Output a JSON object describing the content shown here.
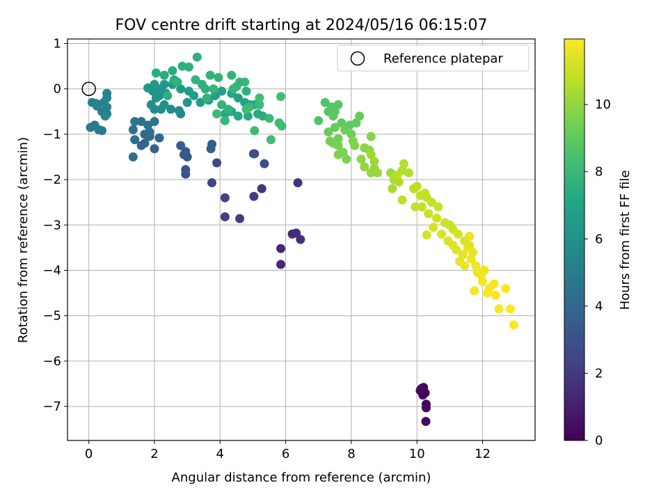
{
  "chart_data": {
    "type": "scatter",
    "title": "FOV centre drift starting at 2024/05/16 06:15:07",
    "xlabel": "Angular distance from reference (arcmin)",
    "ylabel": "Rotation from reference (arcmin)",
    "xlim": [
      -0.65,
      13.6
    ],
    "ylim": [
      -7.75,
      1.1
    ],
    "xticks": [
      0,
      2,
      4,
      6,
      8,
      10,
      12
    ],
    "yticks": [
      1,
      0,
      -1,
      -2,
      -3,
      -4,
      -5,
      -6,
      -7
    ],
    "grid": true,
    "legend": {
      "position": "top-right",
      "entries": [
        "Reference platepar"
      ]
    },
    "reference_point": {
      "x": 0.0,
      "y": 0.0,
      "label": "Reference platepar"
    },
    "colorbar": {
      "label": "Hours from first FF file",
      "cmap": "viridis",
      "range": [
        0,
        11.95
      ],
      "ticks": [
        0,
        2,
        4,
        6,
        8,
        10
      ]
    },
    "points": [
      [
        10.1,
        -6.65,
        0.0
      ],
      [
        10.2,
        -6.7,
        0.05
      ],
      [
        10.15,
        -6.6,
        0.08
      ],
      [
        10.25,
        -6.7,
        0.1
      ],
      [
        10.2,
        -6.58,
        0.12
      ],
      [
        10.18,
        -6.75,
        0.15
      ],
      [
        10.28,
        -6.95,
        0.2
      ],
      [
        10.28,
        -7.03,
        0.25
      ],
      [
        10.27,
        -7.33,
        0.3
      ],
      [
        10.12,
        -6.62,
        0.35
      ],
      [
        5.85,
        -3.52,
        1.3
      ],
      [
        5.85,
        -3.87,
        1.35
      ],
      [
        6.2,
        -3.2,
        1.45
      ],
      [
        6.32,
        -3.18,
        1.5
      ],
      [
        6.45,
        -3.32,
        1.55
      ],
      [
        6.37,
        -2.07,
        1.7
      ],
      [
        5.27,
        -2.2,
        1.9
      ],
      [
        5.03,
        -2.37,
        2.0
      ],
      [
        4.6,
        -2.86,
        2.1
      ],
      [
        4.15,
        -2.82,
        2.2
      ],
      [
        4.15,
        -2.4,
        2.3
      ],
      [
        3.75,
        -2.07,
        2.4
      ],
      [
        3.9,
        -1.63,
        2.6
      ],
      [
        5.35,
        -1.65,
        2.7
      ],
      [
        5.05,
        -1.43,
        2.8
      ],
      [
        5.02,
        -1.43,
        2.9
      ],
      [
        2.95,
        -1.88,
        3.0
      ],
      [
        2.95,
        -1.78,
        3.1
      ],
      [
        3.0,
        -1.5,
        3.2
      ],
      [
        2.9,
        -1.45,
        3.3
      ],
      [
        2.95,
        -1.38,
        3.4
      ],
      [
        2.8,
        -1.25,
        3.5
      ],
      [
        3.75,
        -1.22,
        3.55
      ],
      [
        3.72,
        -1.32,
        3.6
      ],
      [
        2.0,
        -1.32,
        3.7
      ],
      [
        1.7,
        -1.2,
        3.8
      ],
      [
        1.6,
        -1.25,
        3.9
      ],
      [
        2.15,
        -1.08,
        4.0
      ],
      [
        1.85,
        -1.05,
        4.1
      ],
      [
        1.7,
        -1.0,
        4.15
      ],
      [
        1.85,
        -0.95,
        4.2
      ],
      [
        1.4,
        -1.12,
        4.3
      ],
      [
        1.35,
        -1.5,
        4.35
      ],
      [
        1.35,
        -0.9,
        4.4
      ],
      [
        1.6,
        -0.72,
        4.5
      ],
      [
        1.8,
        -0.8,
        4.55
      ],
      [
        1.4,
        -0.72,
        4.6
      ],
      [
        2.0,
        -0.72,
        4.65
      ],
      [
        0.05,
        -0.85,
        4.8
      ],
      [
        0.18,
        -0.8,
        4.85
      ],
      [
        0.4,
        -0.92,
        4.9
      ],
      [
        0.3,
        -0.9,
        4.95
      ],
      [
        0.55,
        -0.55,
        5.0
      ],
      [
        0.4,
        -0.5,
        5.05
      ],
      [
        0.55,
        -0.4,
        5.1
      ],
      [
        0.25,
        -0.38,
        5.15
      ],
      [
        0.1,
        -0.3,
        5.2
      ],
      [
        0.22,
        -0.32,
        5.25
      ],
      [
        0.45,
        -0.3,
        5.3
      ],
      [
        0.55,
        -0.2,
        5.35
      ],
      [
        0.55,
        -0.1,
        5.4
      ],
      [
        0.5,
        -0.6,
        5.45
      ],
      [
        2.8,
        -0.55,
        5.6
      ],
      [
        2.75,
        -0.48,
        5.7
      ],
      [
        2.5,
        -0.45,
        5.75
      ],
      [
        2.2,
        -0.45,
        5.8
      ],
      [
        2.0,
        -0.45,
        5.85
      ],
      [
        1.9,
        -0.35,
        5.9
      ],
      [
        2.3,
        -0.35,
        5.95
      ],
      [
        3.0,
        -0.3,
        6.0
      ],
      [
        2.05,
        -0.2,
        6.05
      ],
      [
        2.15,
        -0.15,
        6.1
      ],
      [
        2.35,
        -0.1,
        6.15
      ],
      [
        1.95,
        -0.05,
        6.2
      ],
      [
        2.2,
        0.0,
        6.25
      ],
      [
        1.8,
        0.02,
        6.3
      ],
      [
        2.0,
        0.1,
        6.35
      ],
      [
        2.3,
        0.1,
        6.4
      ],
      [
        2.55,
        0.1,
        6.45
      ],
      [
        2.8,
        0.0,
        6.5
      ],
      [
        3.05,
        -0.05,
        6.55
      ],
      [
        3.2,
        -0.15,
        6.6
      ],
      [
        3.4,
        -0.3,
        6.65
      ],
      [
        3.65,
        -0.25,
        6.7
      ],
      [
        3.85,
        -0.15,
        6.75
      ],
      [
        4.05,
        -0.05,
        6.8
      ],
      [
        4.35,
        -0.1,
        6.85
      ],
      [
        4.55,
        -0.2,
        6.9
      ],
      [
        4.75,
        -0.3,
        6.95
      ],
      [
        4.9,
        -0.35,
        7.0
      ],
      [
        5.05,
        -0.35,
        7.05
      ],
      [
        4.15,
        -0.55,
        7.1
      ],
      [
        4.35,
        -0.5,
        7.15
      ],
      [
        4.55,
        -0.6,
        7.2
      ],
      [
        4.85,
        -0.6,
        7.25
      ],
      [
        5.15,
        -0.55,
        7.3
      ],
      [
        5.3,
        -0.6,
        7.35
      ],
      [
        2.3,
        0.3,
        7.4
      ],
      [
        2.05,
        0.35,
        7.45
      ],
      [
        2.55,
        0.4,
        7.5
      ],
      [
        2.85,
        0.5,
        7.55
      ],
      [
        3.3,
        0.7,
        7.6
      ],
      [
        3.05,
        0.48,
        7.65
      ],
      [
        3.7,
        0.3,
        7.7
      ],
      [
        3.95,
        0.25,
        7.75
      ],
      [
        4.35,
        0.3,
        7.8
      ],
      [
        4.5,
        0.05,
        7.85
      ],
      [
        4.75,
        0.15,
        7.9
      ],
      [
        4.15,
        -0.7,
        7.95
      ],
      [
        3.9,
        -0.55,
        8.0
      ],
      [
        4.6,
        0.15,
        7.75
      ],
      [
        4.8,
        -0.05,
        7.6
      ],
      [
        3.45,
        0.1,
        7.55
      ],
      [
        3.55,
        0.0,
        7.55
      ],
      [
        2.6,
        0.2,
        7.5
      ],
      [
        2.4,
        -0.15,
        7.6
      ],
      [
        4.05,
        -0.35,
        7.8
      ],
      [
        4.25,
        -0.45,
        7.85
      ],
      [
        3.8,
        0.0,
        7.9
      ],
      [
        3.25,
        0.2,
        7.7
      ],
      [
        3.6,
        -0.2,
        7.75
      ],
      [
        2.7,
        0.15,
        7.65
      ],
      [
        4.4,
        0.0,
        7.95
      ],
      [
        4.9,
        -0.4,
        8.0
      ],
      [
        5.2,
        -0.35,
        8.05
      ],
      [
        5.5,
        -0.65,
        8.1
      ],
      [
        5.8,
        -0.75,
        8.15
      ],
      [
        5.88,
        -0.82,
        8.2
      ],
      [
        5.05,
        -0.92,
        8.2
      ],
      [
        5.55,
        -1.12,
        8.25
      ],
      [
        5.85,
        -0.17,
        8.25
      ],
      [
        5.2,
        -0.2,
        8.3
      ],
      [
        4.8,
        -0.45,
        8.2
      ],
      [
        7.2,
        -0.3,
        8.6
      ],
      [
        7.0,
        -0.7,
        8.65
      ],
      [
        7.4,
        -0.4,
        8.7
      ],
      [
        7.3,
        -0.5,
        8.75
      ],
      [
        7.6,
        -0.35,
        8.8
      ],
      [
        7.5,
        -0.5,
        8.85
      ],
      [
        7.45,
        -0.6,
        8.9
      ],
      [
        7.7,
        -0.75,
        8.95
      ],
      [
        7.95,
        -0.8,
        9.0
      ],
      [
        8.15,
        -0.75,
        9.05
      ],
      [
        8.25,
        -0.6,
        9.1
      ],
      [
        7.5,
        -0.85,
        9.15
      ],
      [
        7.3,
        -0.95,
        9.2
      ],
      [
        7.8,
        -0.9,
        9.25
      ],
      [
        8.0,
        -1.0,
        9.3
      ],
      [
        7.6,
        -1.1,
        9.35
      ],
      [
        7.35,
        -1.15,
        9.4
      ],
      [
        7.6,
        -1.25,
        9.45
      ],
      [
        7.45,
        -1.2,
        9.5
      ],
      [
        7.75,
        -1.4,
        9.55
      ],
      [
        7.85,
        -1.55,
        9.6
      ],
      [
        7.6,
        -1.45,
        9.65
      ],
      [
        8.1,
        -1.25,
        9.7
      ],
      [
        8.05,
        -1.15,
        9.75
      ],
      [
        8.6,
        -1.05,
        9.8
      ],
      [
        8.4,
        -1.3,
        9.85
      ],
      [
        8.55,
        -1.35,
        9.9
      ],
      [
        8.3,
        -1.55,
        9.95
      ],
      [
        8.4,
        -1.72,
        10.0
      ],
      [
        8.7,
        -1.75,
        10.05
      ],
      [
        8.6,
        -1.85,
        10.1
      ],
      [
        8.8,
        -1.85,
        10.15
      ],
      [
        8.7,
        -1.6,
        10.2
      ],
      [
        8.6,
        -1.45,
        10.25
      ],
      [
        9.2,
        -1.85,
        10.3
      ],
      [
        9.3,
        -2.0,
        10.35
      ],
      [
        9.25,
        -2.2,
        10.4
      ],
      [
        9.45,
        -2.05,
        10.45
      ],
      [
        9.55,
        -1.8,
        10.5
      ],
      [
        9.75,
        -1.85,
        10.55
      ],
      [
        9.6,
        -1.65,
        10.6
      ],
      [
        9.4,
        -1.9,
        10.65
      ],
      [
        10.0,
        -2.15,
        10.7
      ],
      [
        9.9,
        -2.2,
        10.75
      ],
      [
        9.55,
        -2.45,
        10.8
      ],
      [
        10.1,
        -2.35,
        10.85
      ],
      [
        10.3,
        -2.4,
        10.9
      ],
      [
        10.15,
        -2.6,
        10.95
      ],
      [
        9.95,
        -2.6,
        10.95
      ],
      [
        10.35,
        -2.75,
        11.0
      ],
      [
        10.6,
        -2.85,
        11.05
      ],
      [
        10.85,
        -2.95,
        11.1
      ],
      [
        10.5,
        -3.05,
        11.15
      ],
      [
        10.3,
        -3.22,
        11.2
      ],
      [
        10.75,
        -3.2,
        11.25
      ],
      [
        10.95,
        -3.35,
        11.3
      ],
      [
        11.1,
        -3.45,
        11.35
      ],
      [
        11.2,
        -3.55,
        11.4
      ],
      [
        11.4,
        -3.65,
        11.45
      ],
      [
        11.3,
        -3.8,
        11.5
      ],
      [
        11.55,
        -3.5,
        11.55
      ],
      [
        11.6,
        -3.25,
        11.6
      ],
      [
        11.8,
        -3.9,
        11.65
      ],
      [
        11.85,
        -4.05,
        11.7
      ],
      [
        11.75,
        -4.45,
        11.75
      ],
      [
        12.0,
        -4.25,
        11.8
      ],
      [
        12.2,
        -4.4,
        11.85
      ],
      [
        12.5,
        -4.85,
        11.9
      ],
      [
        12.95,
        -5.2,
        11.95
      ],
      [
        12.85,
        -4.85,
        11.9
      ],
      [
        12.7,
        -4.4,
        11.85
      ],
      [
        12.35,
        -4.3,
        11.8
      ],
      [
        12.15,
        -4.5,
        11.82
      ],
      [
        12.4,
        -4.55,
        11.85
      ],
      [
        11.95,
        -4.1,
        11.75
      ],
      [
        11.65,
        -3.75,
        11.7
      ],
      [
        11.45,
        -3.9,
        11.6
      ],
      [
        10.25,
        -2.3,
        10.85
      ],
      [
        10.45,
        -2.5,
        10.9
      ],
      [
        10.65,
        -2.6,
        10.95
      ],
      [
        11.0,
        -3.0,
        11.05
      ],
      [
        11.1,
        -3.1,
        11.1
      ],
      [
        11.25,
        -3.2,
        11.2
      ],
      [
        11.45,
        -3.35,
        11.3
      ],
      [
        11.6,
        -3.45,
        11.4
      ],
      [
        11.7,
        -3.6,
        11.5
      ],
      [
        12.05,
        -4.0,
        11.65
      ]
    ]
  }
}
